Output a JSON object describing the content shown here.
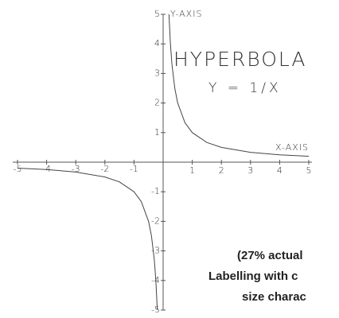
{
  "chart_data": {
    "type": "line",
    "title": "HYPERBOLA",
    "subtitle": "Y = 1/X",
    "x_label": "X-AXIS",
    "y_label": "Y-AXIS",
    "annotations": [
      "(27% actual",
      "Labelling with c",
      "size charac"
    ],
    "x": [
      -5,
      -4,
      -3,
      -2,
      -1.5,
      -1,
      -0.75,
      -0.5,
      -0.4,
      -0.3,
      -0.25,
      -0.2,
      0,
      0.2,
      0.25,
      0.3,
      0.4,
      0.5,
      0.75,
      1,
      1.5,
      2,
      3,
      4,
      5
    ],
    "series": [
      {
        "name": "Y = 1/X",
        "color": "#444444",
        "values": [
          -0.2,
          -0.25,
          -0.333,
          -0.5,
          -0.667,
          -1,
          -1.333,
          -2,
          -2.5,
          -3.333,
          -4,
          -5,
          null,
          5,
          4,
          3.333,
          2.5,
          2,
          1.333,
          1,
          0.667,
          0.5,
          0.333,
          0.25,
          0.2
        ]
      }
    ],
    "xlim": [
      -5,
      5
    ],
    "ylim": [
      -5,
      5
    ],
    "xticks": [
      -5,
      -4,
      -3,
      -2,
      -1,
      1,
      2,
      3,
      4,
      5
    ],
    "yticks": [
      -5,
      -4,
      -3,
      -2,
      -1,
      1,
      2,
      3,
      4,
      5
    ]
  }
}
